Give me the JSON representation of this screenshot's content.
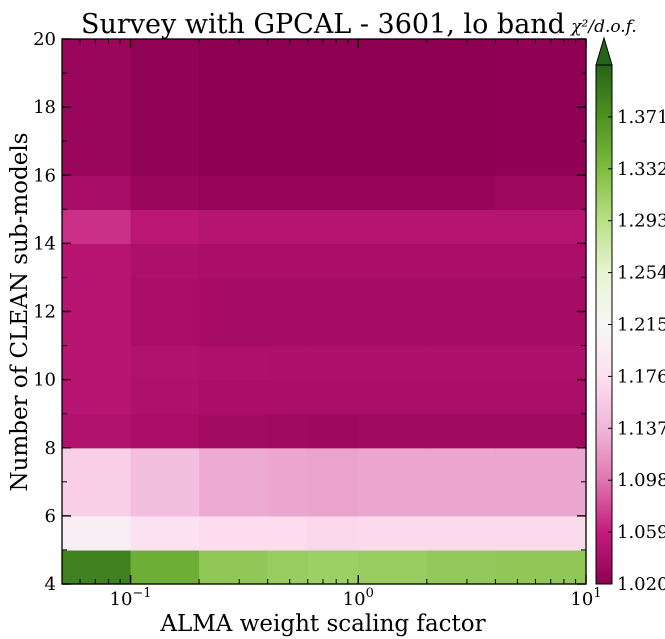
{
  "chart_data": {
    "type": "heatmap",
    "title": "Survey with GPCAL - 3601, lo band",
    "xlabel": "ALMA weight scaling factor",
    "ylabel": "Number of CLEAN sub-models",
    "colorbar_label": "χ²/d.o.f.",
    "x_scale": "log",
    "xlim": [
      0.05,
      10
    ],
    "ylim": [
      4,
      20
    ],
    "x_edges": [
      0.05,
      0.1,
      0.2,
      0.4,
      0.6,
      1.0,
      2.0,
      4.0,
      10.0
    ],
    "y_edges": [
      4,
      5,
      6,
      8,
      9,
      10,
      11,
      13,
      14,
      15,
      16,
      20
    ],
    "x_tick_labels": [
      {
        "value": 0.1,
        "base": "10",
        "exp": "−1"
      },
      {
        "value": 1,
        "base": "10",
        "exp": "0"
      },
      {
        "value": 10,
        "base": "10",
        "exp": "1"
      }
    ],
    "y_ticks": [
      "4",
      "6",
      "8",
      "10",
      "12",
      "14",
      "16",
      "18",
      "20"
    ],
    "colorbar": {
      "vmin": 1.02,
      "vmax": 1.41,
      "extend": "max",
      "colormap": "PiYG",
      "ticks": [
        "1.020",
        "1.059",
        "1.098",
        "1.137",
        "1.176",
        "1.215",
        "1.254",
        "1.293",
        "1.332",
        "1.371"
      ]
    },
    "cells": [
      [
        1.385,
        1.345,
        1.32,
        1.315,
        1.312,
        1.315,
        1.318,
        1.32
      ],
      [
        1.2,
        1.18,
        1.172,
        1.172,
        1.168,
        1.17,
        1.17,
        1.17
      ],
      [
        1.16,
        1.145,
        1.13,
        1.127,
        1.125,
        1.127,
        1.127,
        1.127
      ],
      [
        1.045,
        1.04,
        1.035,
        1.033,
        1.031,
        1.033,
        1.033,
        1.033
      ],
      [
        1.05,
        1.043,
        1.04,
        1.04,
        1.04,
        1.04,
        1.04,
        1.04
      ],
      [
        1.05,
        1.045,
        1.043,
        1.042,
        1.042,
        1.042,
        1.042,
        1.042
      ],
      [
        1.05,
        1.04,
        1.037,
        1.037,
        1.037,
        1.037,
        1.037,
        1.037
      ],
      [
        1.05,
        1.042,
        1.04,
        1.04,
        1.04,
        1.04,
        1.04,
        1.04
      ],
      [
        1.068,
        1.052,
        1.048,
        1.048,
        1.048,
        1.048,
        1.048,
        1.048
      ],
      [
        1.038,
        1.028,
        1.026,
        1.026,
        1.026,
        1.026,
        1.026,
        1.031
      ],
      [
        1.028,
        1.023,
        1.02,
        1.02,
        1.02,
        1.02,
        1.02,
        1.022
      ]
    ]
  }
}
